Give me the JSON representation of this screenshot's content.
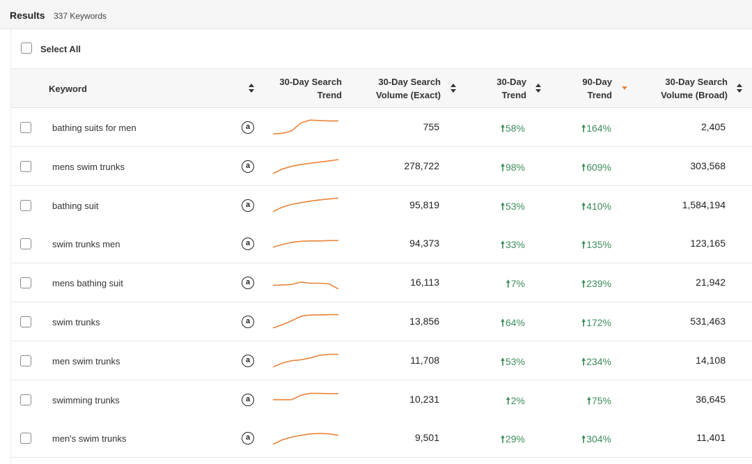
{
  "header": {
    "title": "Results",
    "count": "337 Keywords"
  },
  "select_all_label": "Select All",
  "columns": {
    "keyword": "Keyword",
    "search_trend_line1": "30-Day Search",
    "search_trend_line2": "Trend",
    "volume_exact_line1": "30-Day Search",
    "volume_exact_line2": "Volume (Exact)",
    "trend30_line1": "30-Day",
    "trend30_line2": "Trend",
    "trend90_line1": "90-Day",
    "trend90_line2": "Trend",
    "volume_broad_line1": "30-Day Search",
    "volume_broad_line2": "Volume (Broad)"
  },
  "accent_color": "#e8843a",
  "positive_color": "#3d8c5b",
  "amazon_icon_glyph": "a",
  "trend_arrow": "🠕",
  "rows": [
    {
      "keyword": "bathing suits for men",
      "volume_exact": "755",
      "trend30": "58%",
      "trend90": "164%",
      "volume_broad": "2,405",
      "spark": [
        0.18,
        0.22,
        0.35,
        0.8,
        0.95,
        0.92,
        0.9,
        0.9
      ]
    },
    {
      "keyword": "mens swim trunks",
      "volume_exact": "278,722",
      "trend30": "98%",
      "trend90": "609%",
      "volume_broad": "303,568",
      "spark": [
        0.15,
        0.4,
        0.55,
        0.65,
        0.72,
        0.78,
        0.85,
        0.92
      ]
    },
    {
      "keyword": "bathing suit",
      "volume_exact": "95,819",
      "trend30": "53%",
      "trend90": "410%",
      "volume_broad": "1,584,194",
      "spark": [
        0.2,
        0.45,
        0.6,
        0.7,
        0.78,
        0.85,
        0.9,
        0.95
      ]
    },
    {
      "keyword": "swim trunks men",
      "volume_exact": "94,373",
      "trend30": "33%",
      "trend90": "135%",
      "volume_broad": "123,165",
      "spark": [
        0.35,
        0.5,
        0.62,
        0.68,
        0.7,
        0.7,
        0.72,
        0.72
      ]
    },
    {
      "keyword": "mens bathing suit",
      "volume_exact": "16,113",
      "trend30": "7%",
      "trend90": "239%",
      "volume_broad": "21,942",
      "spark": [
        0.4,
        0.42,
        0.45,
        0.58,
        0.52,
        0.52,
        0.48,
        0.2
      ]
    },
    {
      "keyword": "swim trunks",
      "volume_exact": "13,856",
      "trend30": "64%",
      "trend90": "172%",
      "volume_broad": "531,463",
      "spark": [
        0.2,
        0.38,
        0.6,
        0.85,
        0.92,
        0.92,
        0.94,
        0.94
      ]
    },
    {
      "keyword": "men swim trunks",
      "volume_exact": "11,708",
      "trend30": "53%",
      "trend90": "234%",
      "volume_broad": "14,108",
      "spark": [
        0.2,
        0.42,
        0.55,
        0.6,
        0.7,
        0.85,
        0.9,
        0.9
      ]
    },
    {
      "keyword": "swimming trunks",
      "volume_exact": "10,231",
      "trend30": "2%",
      "trend90": "75%",
      "volume_broad": "36,645",
      "spark": [
        0.55,
        0.55,
        0.55,
        0.8,
        0.9,
        0.9,
        0.88,
        0.88
      ]
    },
    {
      "keyword": "men's swim trunks",
      "volume_exact": "9,501",
      "trend30": "29%",
      "trend90": "304%",
      "volume_broad": "11,401",
      "spark": [
        0.2,
        0.45,
        0.6,
        0.7,
        0.78,
        0.8,
        0.78,
        0.7
      ]
    }
  ]
}
